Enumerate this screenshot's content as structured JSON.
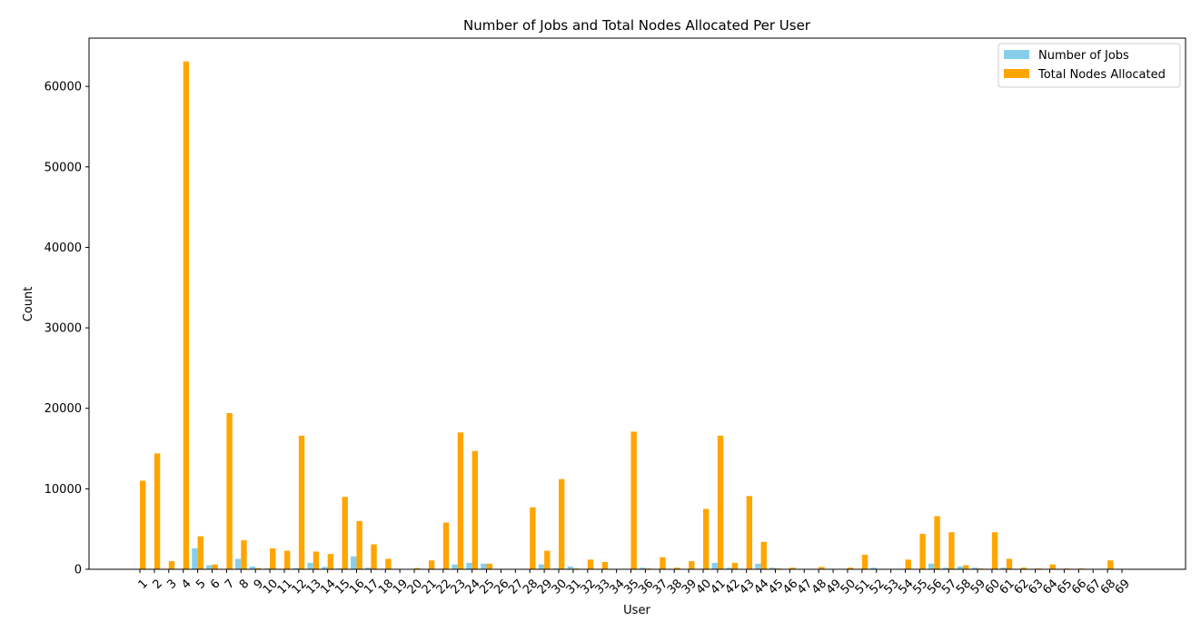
{
  "chart_data": {
    "type": "bar",
    "title": "Number of Jobs and Total Nodes Allocated Per User",
    "xlabel": "User",
    "ylabel": "Count",
    "ylim": [
      0,
      66000
    ],
    "yticks": [
      0,
      10000,
      20000,
      30000,
      40000,
      50000,
      60000
    ],
    "grid": false,
    "legend_position": "upper right",
    "categories": [
      "1",
      "2",
      "3",
      "4",
      "5",
      "6",
      "7",
      "8",
      "9",
      "10",
      "11",
      "12",
      "13",
      "14",
      "15",
      "16",
      "17",
      "18",
      "19",
      "20",
      "21",
      "22",
      "23",
      "24",
      "25",
      "26",
      "27",
      "28",
      "29",
      "30",
      "31",
      "32",
      "33",
      "34",
      "35",
      "36",
      "37",
      "38",
      "39",
      "40",
      "41",
      "42",
      "43",
      "44",
      "45",
      "46",
      "47",
      "48",
      "49",
      "50",
      "51",
      "52",
      "53",
      "54",
      "55",
      "56",
      "57",
      "58",
      "59",
      "60",
      "61",
      "62",
      "63",
      "64",
      "65",
      "66",
      "67",
      "68",
      "69"
    ],
    "series": [
      {
        "name": "Number of Jobs",
        "color": "#87ceeb",
        "values": [
          20,
          10,
          10,
          30,
          2600,
          500,
          30,
          1300,
          350,
          100,
          50,
          150,
          800,
          300,
          100,
          1600,
          200,
          50,
          10,
          10,
          30,
          50,
          600,
          800,
          700,
          10,
          10,
          50,
          600,
          100,
          350,
          10,
          10,
          10,
          50,
          200,
          10,
          50,
          10,
          50,
          800,
          200,
          50,
          700,
          200,
          10,
          10,
          50,
          10,
          10,
          30,
          200,
          10,
          10,
          30,
          700,
          200,
          350,
          200,
          30,
          200,
          10,
          10,
          30,
          10,
          10,
          10,
          30,
          10
        ]
      },
      {
        "name": "Total Nodes Allocated",
        "color": "#ffa500",
        "values": [
          11000,
          14400,
          1000,
          63100,
          4100,
          600,
          19400,
          3600,
          150,
          2600,
          2300,
          16600,
          2200,
          1900,
          9000,
          6000,
          3100,
          1300,
          50,
          150,
          1100,
          5800,
          17000,
          14700,
          700,
          50,
          50,
          7700,
          2300,
          11200,
          100,
          1200,
          900,
          30,
          17100,
          100,
          1500,
          200,
          1000,
          7500,
          16600,
          800,
          9100,
          3400,
          100,
          200,
          50,
          300,
          50,
          200,
          1800,
          50,
          50,
          1200,
          4400,
          6600,
          4600,
          500,
          100,
          4600,
          1300,
          200,
          100,
          600,
          100,
          100,
          50,
          1100,
          50
        ]
      }
    ]
  }
}
